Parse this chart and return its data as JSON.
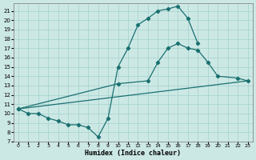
{
  "xlabel": "Humidex (Indice chaleur)",
  "bg_color": "#cce8e5",
  "grid_color": "#aad4d0",
  "line_color": "#1a7070",
  "markersize": 2.2,
  "linewidth": 0.9,
  "marker": "D",
  "curve1_x": [
    0,
    1,
    2,
    3,
    4,
    5,
    6,
    7,
    8,
    9,
    10,
    11,
    12,
    13,
    14,
    15,
    16,
    17,
    18
  ],
  "curve1_y": [
    10.5,
    10.0,
    10.0,
    9.5,
    9.2,
    8.8,
    8.8,
    8.5,
    7.5,
    9.5,
    15.0,
    17.0,
    19.5,
    20.2,
    21.0,
    21.2,
    21.5,
    20.2,
    17.5
  ],
  "curve2_x": [
    0,
    10,
    13,
    14,
    15,
    16,
    17,
    18,
    19,
    20,
    22,
    23
  ],
  "curve2_y": [
    10.5,
    13.2,
    13.5,
    15.5,
    17.0,
    17.5,
    17.0,
    16.8,
    15.5,
    14.0,
    13.8,
    13.5
  ],
  "curve3_x": [
    0,
    23
  ],
  "curve3_y": [
    10.5,
    13.5
  ],
  "ylim": [
    7,
    21.8
  ],
  "xlim": [
    -0.5,
    23.5
  ],
  "yticks": [
    7,
    8,
    9,
    10,
    11,
    12,
    13,
    14,
    15,
    16,
    17,
    18,
    19,
    20,
    21
  ],
  "xticks": [
    0,
    1,
    2,
    3,
    4,
    5,
    6,
    7,
    8,
    9,
    10,
    11,
    12,
    13,
    14,
    15,
    16,
    17,
    18,
    19,
    20,
    21,
    22,
    23
  ],
  "xtick_labels": [
    "0",
    "1",
    "2",
    "3",
    "4",
    "5",
    "6",
    "7",
    "8",
    "9",
    "10",
    "11",
    "12",
    "13",
    "14",
    "15",
    "16",
    "17",
    "18",
    "19",
    "20",
    "21",
    "22",
    "23"
  ]
}
